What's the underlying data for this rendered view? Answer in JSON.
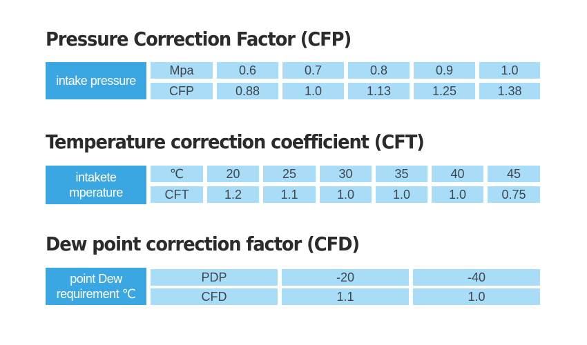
{
  "colors": {
    "header": "#3aa7e3",
    "cell": "#a9dcf6",
    "title": "#2b2b2b",
    "text": "#3e4650"
  },
  "sections": [
    {
      "title": "Pressure Correction Factor (CFP)",
      "header": [
        "intake pressure"
      ],
      "rows": [
        [
          "Mpa",
          "0.6",
          "0.7",
          "0.8",
          "0.9",
          "1.0"
        ],
        [
          "CFP",
          "0.88",
          "1.0",
          "1.13",
          "1.25",
          "1.38"
        ]
      ]
    },
    {
      "title": "Temperature correction coefficient (CFT)",
      "header": [
        "intakete",
        "mperature"
      ],
      "rows": [
        [
          "℃",
          "20",
          "25",
          "30",
          "35",
          "40",
          "45"
        ],
        [
          "CFT",
          "1.2",
          "1.1",
          "1.0",
          "1.0",
          "1.0",
          "0.75"
        ]
      ]
    },
    {
      "title": "Dew point correction factor (CFD)",
      "header": [
        "point Dew",
        "requirement ℃"
      ],
      "rows": [
        [
          "PDP",
          "-20",
          "-40"
        ],
        [
          "CFD",
          "1.1",
          "1.0"
        ]
      ]
    }
  ]
}
